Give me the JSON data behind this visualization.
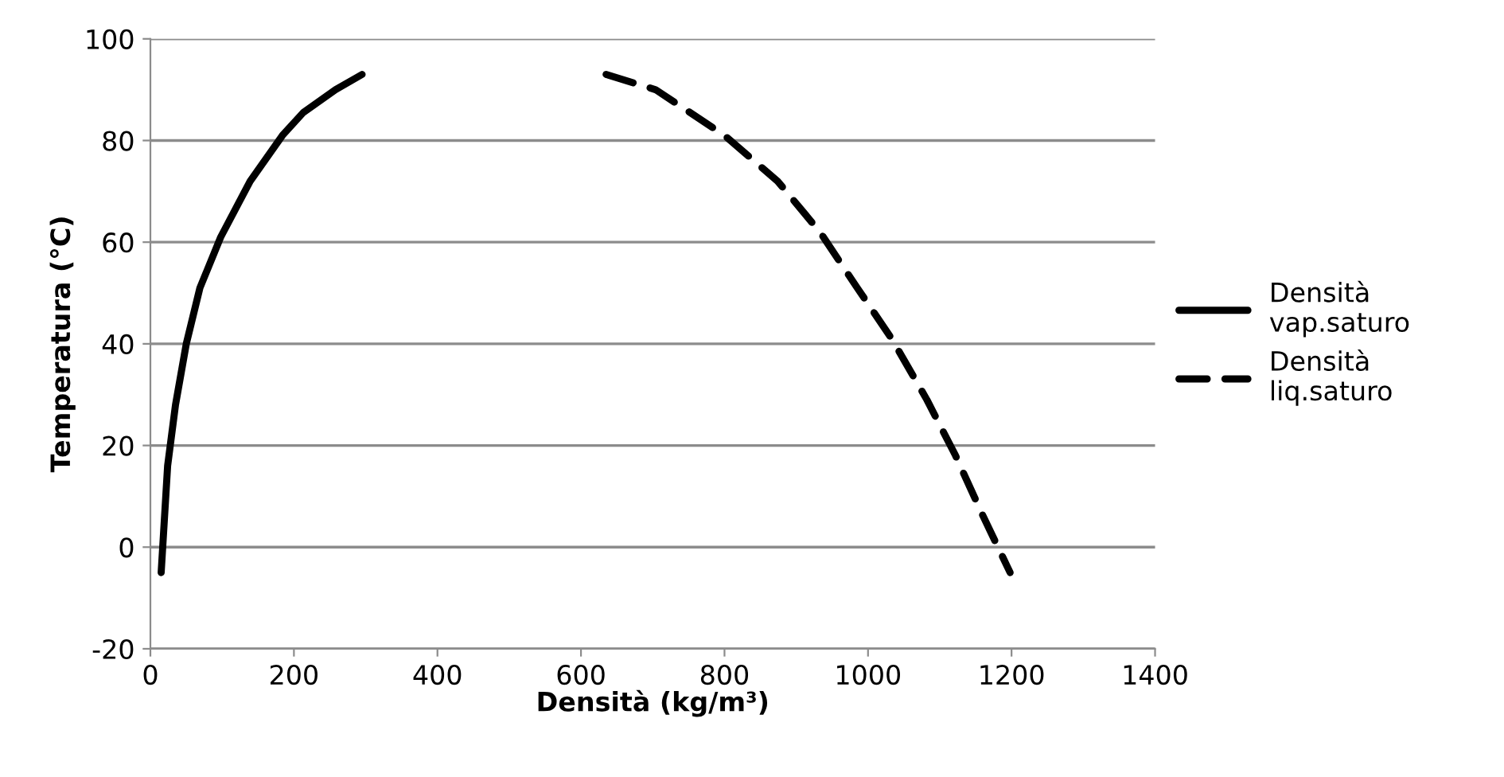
{
  "chart_data": {
    "type": "line",
    "xlabel": "Densità (kg/m³)",
    "ylabel": "Temperatura (°C)",
    "xlim": [
      0,
      1400
    ],
    "xticks": [
      0,
      200,
      400,
      600,
      800,
      1000,
      1200,
      1400
    ],
    "ylim": [
      -20,
      100
    ],
    "yticks": [
      -20,
      0,
      20,
      40,
      60,
      80,
      100
    ],
    "grid": "y",
    "legend": "right",
    "marker": "none",
    "series": [
      {
        "name": "Densità vap.saturo",
        "color": "#000000",
        "line_style": "solid",
        "x": [
          15,
          24,
          35,
          50,
          69,
          98,
          139,
          184,
          213,
          258,
          295
        ],
        "values": [
          -5,
          16,
          28,
          40,
          51,
          61,
          72,
          81,
          85.5,
          90,
          93
        ]
      },
      {
        "name": "Densità liq.saturo",
        "color": "#000000",
        "line_style": "dashed",
        "x": [
          635,
          704,
          800,
          874,
          933,
          985,
          1033,
          1082,
          1122,
          1159,
          1198
        ],
        "values": [
          93,
          90,
          81,
          72,
          62,
          51,
          41,
          29,
          18,
          6.5,
          -5
        ]
      }
    ]
  }
}
